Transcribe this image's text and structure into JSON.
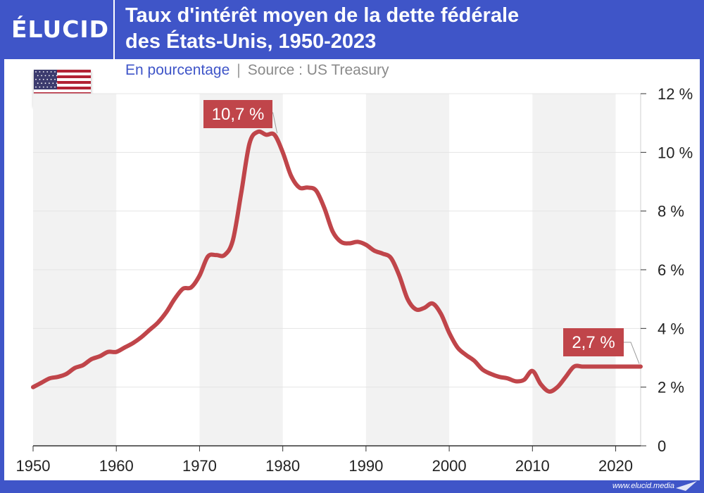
{
  "brand": {
    "logo": "ÉLUCID",
    "website": "www.elucid.media"
  },
  "header": {
    "title_line1": "Taux d'intérêt moyen de la dette fédérale",
    "title_line2": "des États-Unis, 1950-2023"
  },
  "subtitle": {
    "unit": "En pourcentage",
    "separator": "|",
    "source": "Source : US Treasury"
  },
  "flag": {
    "icon": "us-flag-icon"
  },
  "colors": {
    "brand_blue": "#3f55c8",
    "line_red": "#c0454a",
    "band_gray": "#f2f2f2"
  },
  "chart_data": {
    "type": "line",
    "title": "Taux d'intérêt moyen de la dette fédérale des États-Unis, 1950-2023",
    "ylabel": "En pourcentage",
    "xlim": [
      1950,
      2023
    ],
    "ylim": [
      0,
      12
    ],
    "xticks": [
      "1950",
      "1960",
      "1970",
      "1980",
      "1990",
      "2000",
      "2010",
      "2020"
    ],
    "yticks": [
      "0",
      "2 %",
      "4 %",
      "6 %",
      "8 %",
      "10 %",
      "12 %"
    ],
    "y_axis_position": "right",
    "alternating_decade_bands": true,
    "series": [
      {
        "x": [
          1950,
          1951,
          1952,
          1953,
          1954,
          1955,
          1956,
          1957,
          1958,
          1959,
          1960,
          1961,
          1962,
          1963,
          1964,
          1965,
          1966,
          1967,
          1968,
          1969,
          1970,
          1971,
          1972,
          1973,
          1974,
          1975,
          1976,
          1977,
          1978,
          1979,
          1980,
          1981,
          1982,
          1983,
          1984,
          1985,
          1986,
          1987,
          1988,
          1989,
          1990,
          1991,
          1992,
          1993,
          1994,
          1995,
          1996,
          1997,
          1998,
          1999,
          2000,
          2001,
          2002,
          2003,
          2004,
          2005,
          2006,
          2007,
          2008,
          2009,
          2010,
          2011,
          2012,
          2013,
          2014,
          2015,
          2016,
          2017,
          2018,
          2019,
          2020,
          2021,
          2022,
          2023
        ],
        "y": [
          2.0,
          2.15,
          2.3,
          2.35,
          2.45,
          2.65,
          2.75,
          2.95,
          3.05,
          3.2,
          3.2,
          3.35,
          3.5,
          3.7,
          3.95,
          4.2,
          4.55,
          5.0,
          5.35,
          5.4,
          5.8,
          6.45,
          6.5,
          6.5,
          7.0,
          8.6,
          10.3,
          10.7,
          10.6,
          10.6,
          10.0,
          9.2,
          8.8,
          8.8,
          8.7,
          8.1,
          7.3,
          6.95,
          6.9,
          6.95,
          6.85,
          6.65,
          6.55,
          6.4,
          5.8,
          5.0,
          4.65,
          4.7,
          4.85,
          4.5,
          3.85,
          3.35,
          3.1,
          2.9,
          2.6,
          2.45,
          2.35,
          2.3,
          2.2,
          2.25,
          2.55,
          2.1,
          1.85,
          2.0,
          2.35,
          2.7,
          2.7,
          2.7,
          2.7,
          2.7,
          2.7,
          2.7,
          2.7,
          2.7
        ],
        "color": "#c0454a"
      }
    ],
    "annotations": [
      {
        "label": "10,7 %",
        "x": 1980,
        "y": 10.7
      },
      {
        "label": "2,7 %",
        "x": 2023,
        "y": 2.7
      }
    ]
  }
}
